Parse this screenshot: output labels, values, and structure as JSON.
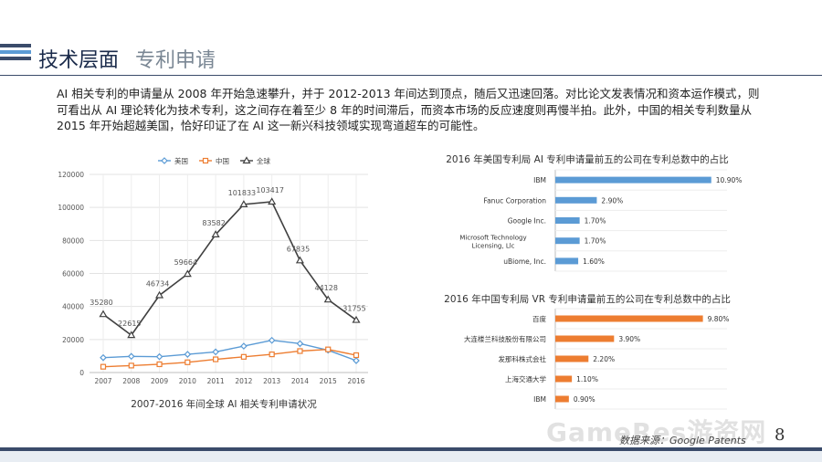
{
  "header": {
    "title": "技术层面",
    "subtitle": "专利申请"
  },
  "paragraph": "AI 相关专利的申请量从 2008 年开始急速攀升，并于 2012-2013 年间达到顶点，随后又迅速回落。对比论文发表情况和资本运作模式，则可看出从 AI 理论转化为技术专利，这之间存在着至少 8 年的时间滞后，而资本市场的反应速度则再慢半拍。此外，中国的相关专利数量从 2015 年开始超越美国，恰好印证了在 AI 这一新兴科技领域实现弯道超车的可能性。",
  "colors": {
    "usa": "#5b9bd5",
    "china": "#ed7d31",
    "global": "#404040",
    "bar_blue": "#5b9bd5",
    "bar_orange": "#ed7d31",
    "accent_dark": "#3a4b6a"
  },
  "chart_data": [
    {
      "type": "line",
      "title": "2007-2016 年间全球 AI 相关专利申请状况",
      "x": [
        "2007",
        "2008",
        "2009",
        "2010",
        "2011",
        "2012",
        "2013",
        "2014",
        "2015",
        "2016"
      ],
      "ylim": [
        0,
        120000
      ],
      "yticks": [
        "0",
        "20000",
        "40000",
        "60000",
        "80000",
        "100000",
        "120000"
      ],
      "grid": true,
      "legend": "top",
      "series": [
        {
          "name": "美国",
          "values": [
            9000,
            9800,
            9600,
            11000,
            12500,
            16000,
            19500,
            17500,
            13500,
            7200
          ]
        },
        {
          "name": "中国",
          "values": [
            3500,
            4200,
            5000,
            6200,
            8000,
            9500,
            11000,
            13000,
            14000,
            10500
          ]
        },
        {
          "name": "全球",
          "values": [
            35280,
            22615,
            46734,
            59664,
            83582,
            101833,
            103417,
            67835,
            44128,
            31755
          ],
          "labels": [
            "35280",
            "22615",
            "46734",
            "59664",
            "83582",
            "101833",
            "103417",
            "67835",
            "44128",
            "31755"
          ]
        }
      ]
    },
    {
      "type": "bar",
      "orientation": "horizontal",
      "title": "2016 年美国专利局 AI 专利申请量前五的公司在专利总数中的占比",
      "categories": [
        "IBM",
        "Fanuc Corporation",
        "Google Inc.",
        "Microsoft Technology Licensing, Llc",
        "uBiome, Inc."
      ],
      "values": [
        10.9,
        2.9,
        1.7,
        1.7,
        1.6
      ],
      "labels": [
        "10.90%",
        "2.90%",
        "1.70%",
        "1.70%",
        "1.60%"
      ],
      "xlim": [
        0,
        12
      ]
    },
    {
      "type": "bar",
      "orientation": "horizontal",
      "title": "2016 年中国专利局 VR 专利申请量前五的公司在专利总数中的占比",
      "categories": [
        "百度",
        "大连楼兰科技股份有限公司",
        "发那科株式会社",
        "上海交通大学",
        "IBM"
      ],
      "values": [
        9.8,
        3.9,
        2.2,
        1.1,
        0.9
      ],
      "labels": [
        "9.80%",
        "3.90%",
        "2.20%",
        "1.10%",
        "0.90%"
      ],
      "xlim": [
        0,
        11.4
      ]
    }
  ],
  "footer": {
    "source": "数据来源：Google Patents",
    "page": "8",
    "watermark": "GameRes游资网"
  }
}
